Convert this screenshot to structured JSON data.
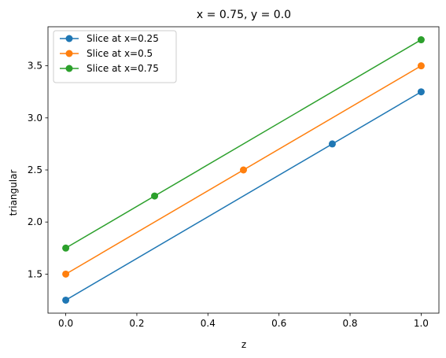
{
  "chart_data": {
    "type": "line",
    "title": "x = 0.75, y = 0.0",
    "xlabel": "z",
    "ylabel": "triangular",
    "xlim": [
      -0.05,
      1.05
    ],
    "ylim": [
      1.125,
      3.875
    ],
    "xticks": [
      0.0,
      0.2,
      0.4,
      0.6,
      0.8,
      1.0
    ],
    "xtick_labels": [
      "0.0",
      "0.2",
      "0.4",
      "0.6",
      "0.8",
      "1.0"
    ],
    "yticks": [
      1.5,
      2.0,
      2.5,
      3.0,
      3.5
    ],
    "ytick_labels": [
      "1.5",
      "2.0",
      "2.5",
      "3.0",
      "3.5"
    ],
    "grid": false,
    "legend_position": "top-left",
    "series": [
      {
        "name": "Slice at x=0.25",
        "color": "#1f77b4",
        "line_x": [
          0.0,
          1.0
        ],
        "line_y": [
          1.25,
          3.25
        ],
        "marker_x": [
          0.0,
          0.75,
          1.0
        ],
        "marker_y": [
          1.25,
          2.75,
          3.25
        ]
      },
      {
        "name": "Slice at x=0.5",
        "color": "#ff7f0e",
        "line_x": [
          0.0,
          1.0
        ],
        "line_y": [
          1.5,
          3.5
        ],
        "marker_x": [
          0.0,
          0.5,
          1.0
        ],
        "marker_y": [
          1.5,
          2.5,
          3.5
        ]
      },
      {
        "name": "Slice at x=0.75",
        "color": "#2ca02c",
        "line_x": [
          0.0,
          1.0
        ],
        "line_y": [
          1.75,
          3.75
        ],
        "marker_x": [
          0.0,
          0.25,
          1.0
        ],
        "marker_y": [
          1.75,
          2.25,
          3.75
        ]
      }
    ]
  }
}
